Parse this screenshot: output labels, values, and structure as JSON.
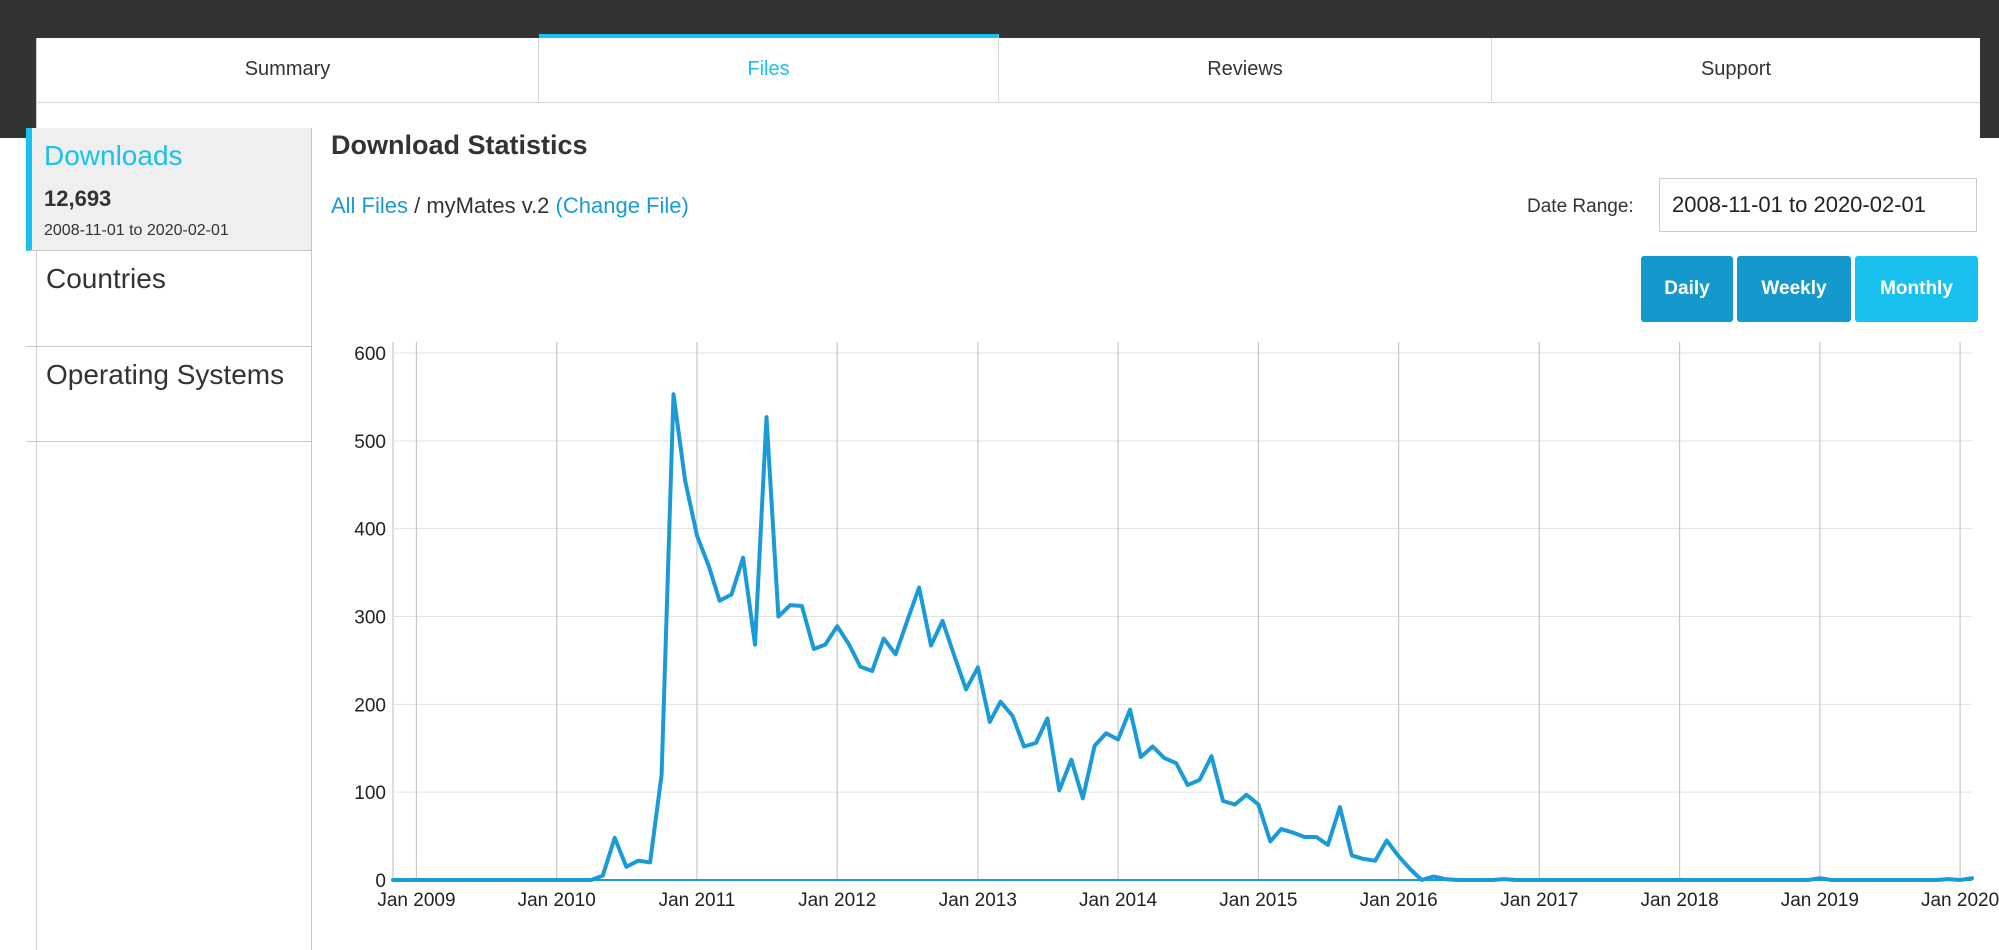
{
  "tabs": [
    {
      "label": "Summary",
      "active": false
    },
    {
      "label": "Files",
      "active": true
    },
    {
      "label": "Reviews",
      "active": false
    },
    {
      "label": "Support",
      "active": false
    }
  ],
  "sidebar": {
    "downloads_label": "Downloads",
    "downloads_count": "12,693",
    "downloads_range": "2008-11-01 to 2020-02-01",
    "countries_label": "Countries",
    "os_label": "Operating Systems"
  },
  "main": {
    "title": "Download Statistics",
    "breadcrumb_all": "All Files",
    "breadcrumb_sep": " / ",
    "breadcrumb_file": "myMates v.2",
    "breadcrumb_change": "(Change File)",
    "date_range_label": "Date Range:",
    "date_range_value": "2008-11-01 to 2020-02-01",
    "buttons": {
      "daily": "Daily",
      "weekly": "Weekly",
      "monthly": "Monthly"
    }
  },
  "colors": {
    "accent": "#18c1ee",
    "button": "#1599cd",
    "line": "#1a9bd7",
    "topbar": "#333333"
  },
  "chart_data": {
    "type": "line",
    "x_ticks": [
      "Jan 2009",
      "Jan 2010",
      "Jan 2011",
      "Jan 2012",
      "Jan 2013",
      "Jan 2014",
      "Jan 2015",
      "Jan 2016",
      "Jan 2017",
      "Jan 2018",
      "Jan 2019",
      "Jan 2020"
    ],
    "y_ticks": [
      0,
      100,
      200,
      300,
      400,
      500,
      600
    ],
    "ylim": [
      0,
      600
    ],
    "xlim": [
      "2008-11-01",
      "2020-02-01"
    ],
    "grid": true,
    "series": [
      {
        "points": [
          [
            "2008-11-01",
            0
          ],
          [
            "2009-06-01",
            0
          ],
          [
            "2010-01-01",
            0
          ],
          [
            "2010-04-01",
            0
          ],
          [
            "2010-05-01",
            5
          ],
          [
            "2010-06-01",
            48
          ],
          [
            "2010-07-01",
            15
          ],
          [
            "2010-08-01",
            22
          ],
          [
            "2010-09-01",
            20
          ],
          [
            "2010-10-01",
            120
          ],
          [
            "2010-11-01",
            553
          ],
          [
            "2010-12-01",
            455
          ],
          [
            "2011-01-01",
            392
          ],
          [
            "2011-02-01",
            357
          ],
          [
            "2011-03-01",
            318
          ],
          [
            "2011-04-01",
            325
          ],
          [
            "2011-05-01",
            367
          ],
          [
            "2011-06-01",
            268
          ],
          [
            "2011-07-01",
            527
          ],
          [
            "2011-08-01",
            300
          ],
          [
            "2011-09-01",
            313
          ],
          [
            "2011-10-01",
            312
          ],
          [
            "2011-11-01",
            263
          ],
          [
            "2011-12-01",
            268
          ],
          [
            "2012-01-01",
            289
          ],
          [
            "2012-02-01",
            268
          ],
          [
            "2012-03-01",
            243
          ],
          [
            "2012-04-01",
            238
          ],
          [
            "2012-05-01",
            275
          ],
          [
            "2012-06-01",
            257
          ],
          [
            "2012-07-01",
            295
          ],
          [
            "2012-08-01",
            333
          ],
          [
            "2012-09-01",
            267
          ],
          [
            "2012-10-01",
            295
          ],
          [
            "2012-11-01",
            255
          ],
          [
            "2012-12-01",
            217
          ],
          [
            "2013-01-01",
            242
          ],
          [
            "2013-02-01",
            180
          ],
          [
            "2013-03-01",
            203
          ],
          [
            "2013-04-01",
            187
          ],
          [
            "2013-05-01",
            152
          ],
          [
            "2013-06-01",
            156
          ],
          [
            "2013-07-01",
            184
          ],
          [
            "2013-08-01",
            102
          ],
          [
            "2013-09-01",
            137
          ],
          [
            "2013-10-01",
            93
          ],
          [
            "2013-11-01",
            153
          ],
          [
            "2013-12-01",
            167
          ],
          [
            "2014-01-01",
            160
          ],
          [
            "2014-02-01",
            194
          ],
          [
            "2014-03-01",
            140
          ],
          [
            "2014-04-01",
            152
          ],
          [
            "2014-05-01",
            139
          ],
          [
            "2014-06-01",
            133
          ],
          [
            "2014-07-01",
            108
          ],
          [
            "2014-08-01",
            114
          ],
          [
            "2014-09-01",
            141
          ],
          [
            "2014-10-01",
            90
          ],
          [
            "2014-11-01",
            86
          ],
          [
            "2014-12-01",
            97
          ],
          [
            "2015-01-01",
            86
          ],
          [
            "2015-02-01",
            44
          ],
          [
            "2015-03-01",
            58
          ],
          [
            "2015-04-01",
            54
          ],
          [
            "2015-05-01",
            49
          ],
          [
            "2015-06-01",
            49
          ],
          [
            "2015-07-01",
            40
          ],
          [
            "2015-08-01",
            83
          ],
          [
            "2015-09-01",
            28
          ],
          [
            "2015-10-01",
            24
          ],
          [
            "2015-11-01",
            22
          ],
          [
            "2015-12-01",
            45
          ],
          [
            "2016-01-01",
            27
          ],
          [
            "2016-02-01",
            12
          ],
          [
            "2016-03-01",
            0
          ],
          [
            "2016-04-01",
            4
          ],
          [
            "2016-05-01",
            1
          ],
          [
            "2016-06-01",
            0
          ],
          [
            "2016-09-01",
            0
          ],
          [
            "2016-10-01",
            1
          ],
          [
            "2016-11-01",
            0
          ],
          [
            "2017-06-01",
            0
          ],
          [
            "2018-01-01",
            0
          ],
          [
            "2018-10-01",
            0
          ],
          [
            "2018-12-01",
            0
          ],
          [
            "2019-01-01",
            2
          ],
          [
            "2019-02-01",
            0
          ],
          [
            "2019-06-01",
            0
          ],
          [
            "2019-11-01",
            0
          ],
          [
            "2019-12-01",
            1
          ],
          [
            "2020-01-01",
            0
          ],
          [
            "2020-02-01",
            2
          ]
        ]
      }
    ]
  }
}
